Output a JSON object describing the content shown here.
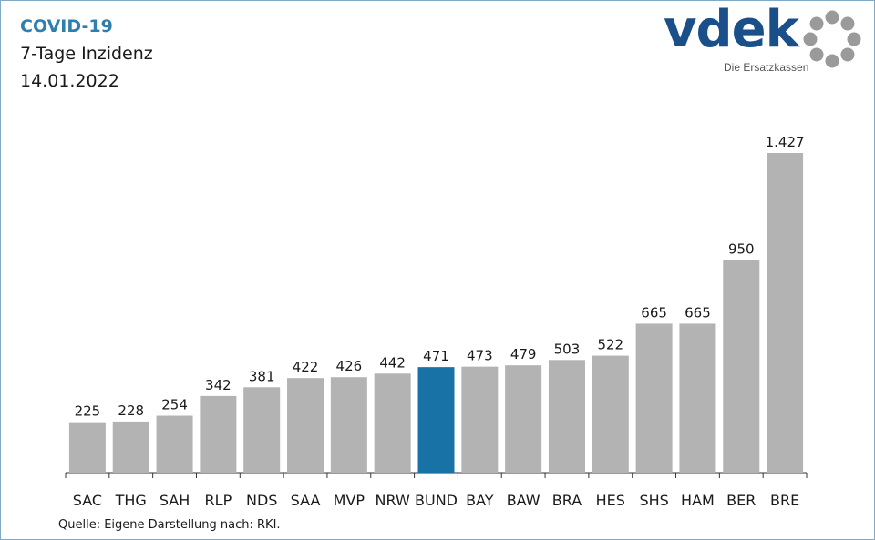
{
  "header": {
    "title": "COVID-19",
    "subtitle": "7-Tage Inzidenz",
    "date": "14.01.2022"
  },
  "logo": {
    "brand": "vdek",
    "tagline": "Die Ersatzkassen"
  },
  "source": "Quelle: Eigene Darstellung nach: RKI.",
  "colors": {
    "bar": "#b3b3b3",
    "highlight": "#1872a6",
    "title_accent": "#2e7fb0",
    "logo": "#1a4f8a",
    "logo_ring": "#9a9a9a"
  },
  "chart_data": {
    "type": "bar",
    "categories": [
      "SAC",
      "THG",
      "SAH",
      "RLP",
      "NDS",
      "SAA",
      "MVP",
      "NRW",
      "BUND",
      "BAY",
      "BAW",
      "BRA",
      "HES",
      "SHS",
      "HAM",
      "BER",
      "BRE"
    ],
    "values": [
      225,
      228,
      254,
      342,
      381,
      422,
      426,
      442,
      471,
      473,
      479,
      503,
      522,
      665,
      665,
      950,
      1427
    ],
    "value_labels": [
      "225",
      "228",
      "254",
      "342",
      "381",
      "422",
      "426",
      "442",
      "471",
      "473",
      "479",
      "503",
      "522",
      "665",
      "665",
      "950",
      "1.427"
    ],
    "highlight_category": "BUND",
    "ylim": [
      0,
      1427
    ],
    "grid": false,
    "legend": "none"
  }
}
